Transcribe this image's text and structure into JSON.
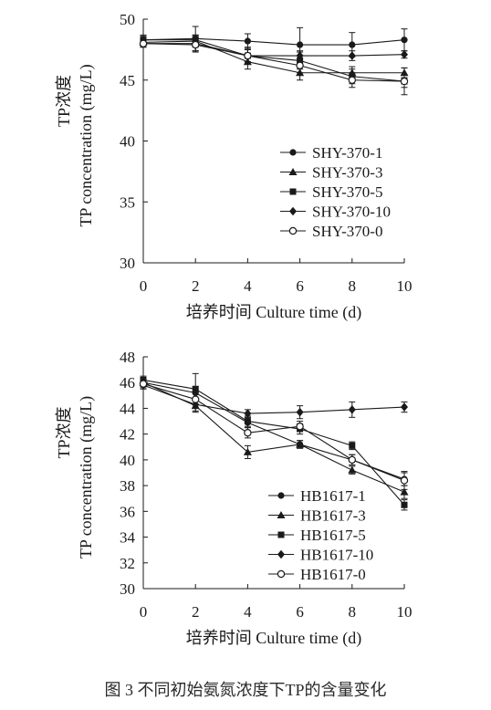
{
  "caption": "图 3   不同初始氨氮浓度下TP的含量变化",
  "chart_data": [
    {
      "type": "line",
      "xlabel": "培养时间 Culture time (d)",
      "ylabel_cn": "TP浓度",
      "ylabel_en": "TP concentration (mg/L)",
      "xlim": [
        0,
        10
      ],
      "ylim": [
        30,
        50
      ],
      "x_ticks": [
        0,
        2,
        4,
        6,
        8,
        10
      ],
      "y_ticks": [
        30,
        35,
        40,
        45,
        50
      ],
      "legend_position": "bottom-right",
      "grid": false,
      "x": [
        0,
        2,
        4,
        6,
        8,
        10
      ],
      "series": [
        {
          "name": "SHY-370-1",
          "marker": "circle-filled",
          "values": [
            48.3,
            48.4,
            48.2,
            47.9,
            47.9,
            48.3
          ],
          "errors": [
            0.4,
            1.0,
            0.6,
            1.4,
            1.0,
            0.9
          ]
        },
        {
          "name": "SHY-370-3",
          "marker": "triangle-filled",
          "values": [
            48.1,
            48.2,
            46.5,
            45.6,
            45.6,
            45.6
          ],
          "errors": [
            0.3,
            0.5,
            0.6,
            0.6,
            0.5,
            0.4
          ]
        },
        {
          "name": "SHY-370-5",
          "marker": "square-filled",
          "values": [
            48.3,
            48.3,
            47.0,
            46.6,
            45.3,
            44.9
          ],
          "errors": [
            0.3,
            0.4,
            0.5,
            0.7,
            0.6,
            0.5
          ]
        },
        {
          "name": "SHY-370-10",
          "marker": "diamond-filled",
          "values": [
            48.0,
            48.0,
            47.0,
            47.0,
            47.0,
            47.1
          ],
          "errors": [
            0.3,
            0.6,
            0.5,
            0.4,
            0.4,
            0.3
          ]
        },
        {
          "name": "SHY-370-0",
          "marker": "circle-open",
          "values": [
            48.0,
            47.9,
            47.0,
            46.2,
            45.0,
            44.9
          ],
          "errors": [
            0.3,
            0.6,
            0.7,
            0.6,
            0.6,
            1.1
          ]
        }
      ]
    },
    {
      "type": "line",
      "xlabel": "培养时间 Culture time (d)",
      "ylabel_cn": "TP浓度",
      "ylabel_en": "TP concentration (mg/L)",
      "xlim": [
        0,
        10
      ],
      "ylim": [
        30,
        48
      ],
      "x_ticks": [
        0,
        2,
        4,
        6,
        8,
        10
      ],
      "y_ticks": [
        30,
        32,
        34,
        36,
        38,
        40,
        42,
        44,
        46,
        48
      ],
      "legend_position": "bottom-right",
      "grid": false,
      "x": [
        0,
        2,
        4,
        6,
        8,
        10
      ],
      "series": [
        {
          "name": "HB1617-1",
          "marker": "circle-filled",
          "values": [
            46.0,
            45.2,
            42.9,
            41.2,
            40.0,
            38.5
          ],
          "errors": [
            0.3,
            0.5,
            0.4,
            0.3,
            0.4,
            0.5
          ]
        },
        {
          "name": "HB1617-3",
          "marker": "triangle-filled",
          "values": [
            46.0,
            44.2,
            40.6,
            41.2,
            39.2,
            37.5
          ],
          "errors": [
            0.3,
            0.5,
            0.5,
            0.3,
            0.3,
            0.5
          ]
        },
        {
          "name": "HB1617-5",
          "marker": "square-filled",
          "values": [
            46.2,
            45.5,
            43.0,
            42.4,
            41.1,
            36.5
          ],
          "errors": [
            0.3,
            1.2,
            0.4,
            0.4,
            0.3,
            0.4
          ]
        },
        {
          "name": "HB1617-10",
          "marker": "diamond-filled",
          "values": [
            45.8,
            44.3,
            43.6,
            43.7,
            43.9,
            44.1
          ],
          "errors": [
            0.3,
            0.5,
            0.3,
            0.5,
            0.6,
            0.4
          ]
        },
        {
          "name": "HB1617-0",
          "marker": "circle-open",
          "values": [
            45.9,
            44.7,
            42.1,
            42.6,
            40.0,
            38.4
          ],
          "errors": [
            0.3,
            0.6,
            0.4,
            0.4,
            0.4,
            0.7
          ]
        }
      ]
    }
  ]
}
